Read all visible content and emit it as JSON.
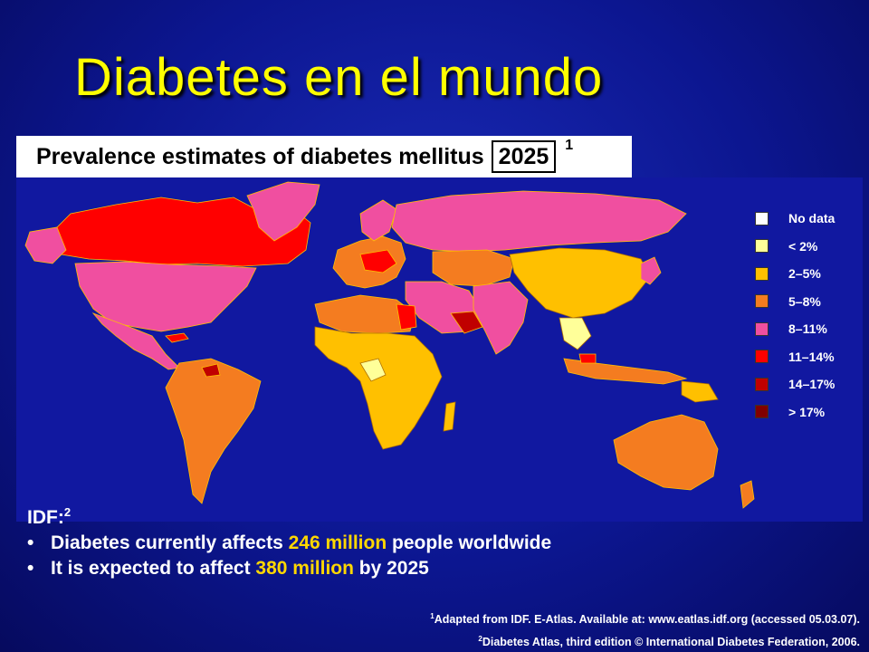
{
  "title": "Diabetes en el mundo",
  "subtitle": {
    "text": "Prevalence estimates of diabetes mellitus",
    "year": "2025",
    "footnote": "1"
  },
  "legend": [
    {
      "label": "No data",
      "color": "#ffffff"
    },
    {
      "label": "< 2%",
      "color": "#ffff99"
    },
    {
      "label": "2–5%",
      "color": "#ffc000"
    },
    {
      "label": "5–8%",
      "color": "#f47c20"
    },
    {
      "label": "8–11%",
      "color": "#f04fa0"
    },
    {
      "label": "11–14%",
      "color": "#ff0000"
    },
    {
      "label": "14–17%",
      "color": "#c00000"
    },
    {
      "label": "> 17%",
      "color": "#800000"
    }
  ],
  "idf": {
    "heading": "IDF:",
    "heading_sup": "2",
    "bullet1_pre": "Diabetes currently affects ",
    "bullet1_hl": "246 million",
    "bullet1_post": " people worldwide",
    "bullet2_pre": "It is expected to affect ",
    "bullet2_hl": "380 million",
    "bullet2_post": " by 2025"
  },
  "references": {
    "ref1_sup": "1",
    "ref1": "Adapted from IDF. E-Atlas. Available at: www.eatlas.idf.org (accessed 05.03.07).",
    "ref2_sup": "2",
    "ref2": "Diabetes Atlas, third edition © International Diabetes Federation, 2006."
  }
}
